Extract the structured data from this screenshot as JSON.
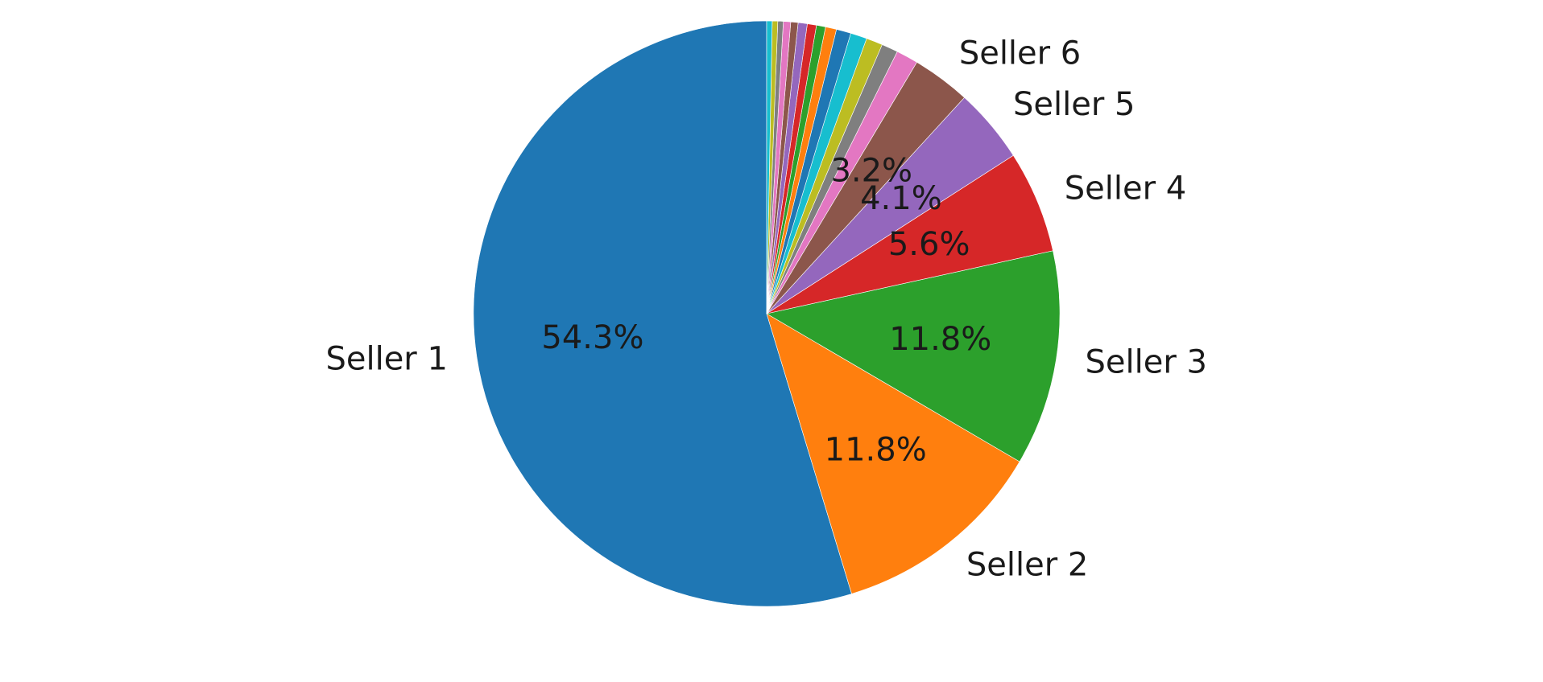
{
  "chart_data": {
    "type": "pie",
    "title": "",
    "start_angle_deg": 90,
    "direction": "counterclockwise",
    "autopct_threshold": 3.0,
    "slices": [
      {
        "label": "Seller 1",
        "value": 54.3,
        "pct_text": "54.3%",
        "color": "#1f77b4"
      },
      {
        "label": "Seller 2",
        "value": 11.8,
        "pct_text": "11.8%",
        "color": "#ff7f0e"
      },
      {
        "label": "Seller 3",
        "value": 11.8,
        "pct_text": "11.8%",
        "color": "#2ca02c"
      },
      {
        "label": "Seller 4",
        "value": 5.6,
        "pct_text": "5.6%",
        "color": "#d62728"
      },
      {
        "label": "Seller 5",
        "value": 4.1,
        "pct_text": "4.1%",
        "color": "#9467bd"
      },
      {
        "label": "Seller 6",
        "value": 3.2,
        "pct_text": "3.2%",
        "color": "#8c564b"
      },
      {
        "label": "",
        "value": 1.2,
        "pct_text": "",
        "color": "#e377c2"
      },
      {
        "label": "",
        "value": 0.9,
        "pct_text": "",
        "color": "#7f7f7f"
      },
      {
        "label": "",
        "value": 0.9,
        "pct_text": "",
        "color": "#bcbd22"
      },
      {
        "label": "",
        "value": 0.9,
        "pct_text": "",
        "color": "#17becf"
      },
      {
        "label": "",
        "value": 0.8,
        "pct_text": "",
        "color": "#1f77b4"
      },
      {
        "label": "",
        "value": 0.6,
        "pct_text": "",
        "color": "#ff7f0e"
      },
      {
        "label": "",
        "value": 0.5,
        "pct_text": "",
        "color": "#2ca02c"
      },
      {
        "label": "",
        "value": 0.5,
        "pct_text": "",
        "color": "#d62728"
      },
      {
        "label": "",
        "value": 0.5,
        "pct_text": "",
        "color": "#9467bd"
      },
      {
        "label": "",
        "value": 0.4,
        "pct_text": "",
        "color": "#8c564b"
      },
      {
        "label": "",
        "value": 0.4,
        "pct_text": "",
        "color": "#e377c2"
      },
      {
        "label": "",
        "value": 0.3,
        "pct_text": "",
        "color": "#7f7f7f"
      },
      {
        "label": "",
        "value": 0.3,
        "pct_text": "",
        "color": "#bcbd22"
      },
      {
        "label": "",
        "value": 0.3,
        "pct_text": "",
        "color": "#17becf"
      }
    ]
  }
}
